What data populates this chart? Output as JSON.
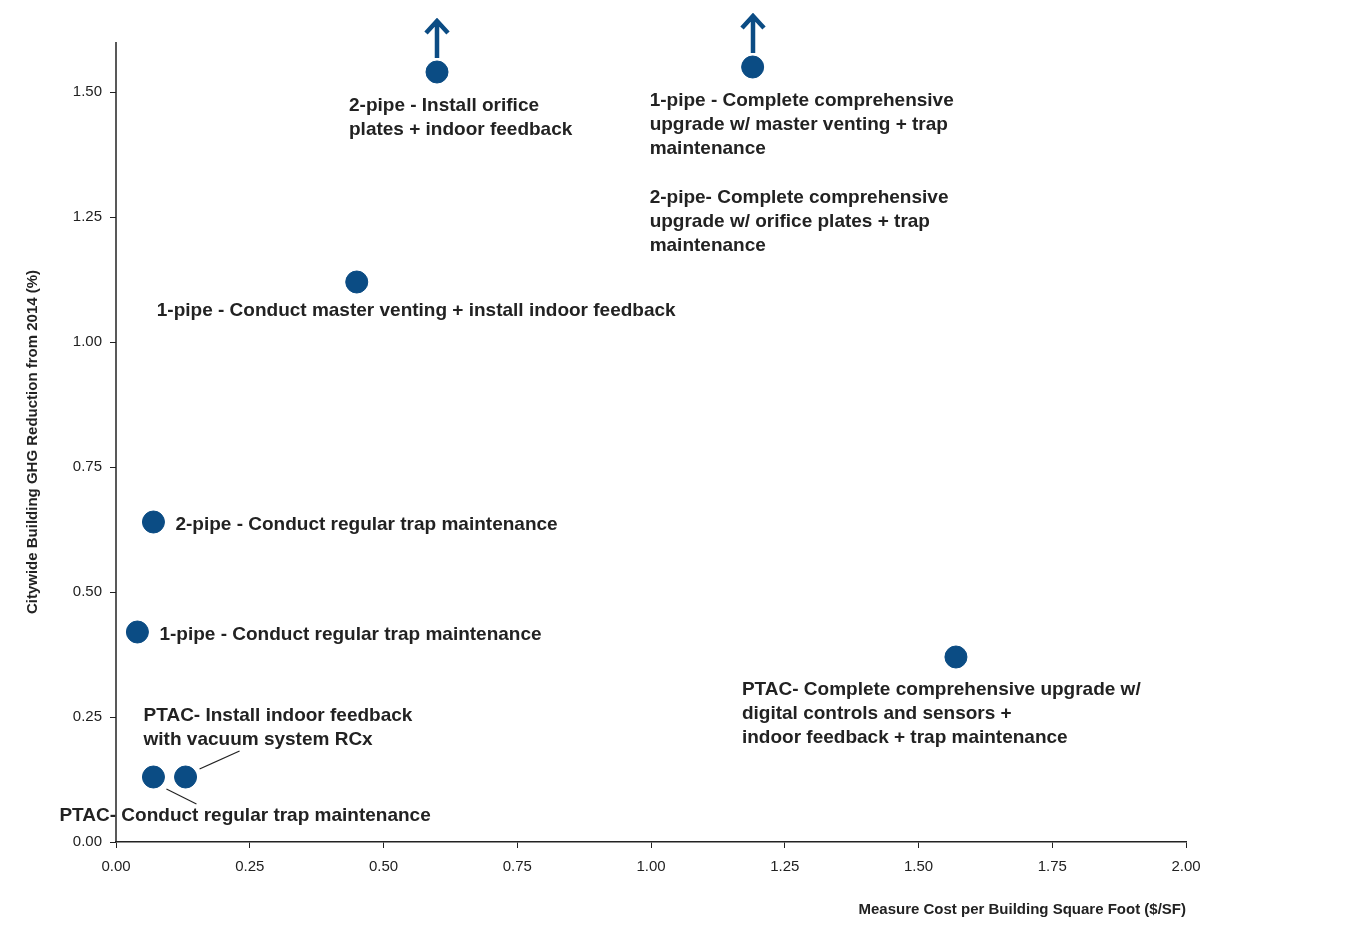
{
  "chart_data": {
    "type": "scatter",
    "xlabel": "Measure Cost per Building Square Foot ($/SF)",
    "ylabel": "Citywide Building GHG Reduction from 2014 (%)",
    "x": [
      0.6,
      1.19,
      0.45,
      0.07,
      0.04,
      1.57,
      0.07,
      0.13
    ],
    "values": [
      1.54,
      1.55,
      1.12,
      0.64,
      0.42,
      0.37,
      0.13,
      0.13
    ],
    "color": "#0b4c84",
    "marker": "circle",
    "grid": false,
    "xlim": [
      0,
      2
    ],
    "ylim": [
      0,
      1.6
    ],
    "xticks": [
      {
        "value": 0,
        "label": "0.00"
      },
      {
        "value": 0.25,
        "label": "0.25"
      },
      {
        "value": 0.5,
        "label": "0.50"
      },
      {
        "value": 0.75,
        "label": "0.75"
      },
      {
        "value": 1,
        "label": "1.00"
      },
      {
        "value": 1.25,
        "label": "1.25"
      },
      {
        "value": 1.5,
        "label": "1.50"
      },
      {
        "value": 1.75,
        "label": "1.75"
      },
      {
        "value": 2,
        "label": "2.00"
      }
    ],
    "yticks": [
      {
        "value": 0,
        "label": "0.00"
      },
      {
        "value": 0.25,
        "label": "0.25"
      },
      {
        "value": 0.5,
        "label": "0.50"
      },
      {
        "value": 0.75,
        "label": "0.75"
      },
      {
        "value": 1,
        "label": "1.00"
      },
      {
        "value": 1.25,
        "label": "1.25"
      },
      {
        "value": 1.5,
        "label": "1.50"
      }
    ],
    "annotations": [
      {
        "text": "2-pipe - Install orifice plates + indoor feedback",
        "x": 0.6,
        "y": 1.54
      },
      {
        "text": "1-pipe - Complete comprehensive upgrade w/ master venting + trap maintenance",
        "x": 1.19,
        "y": 1.55
      },
      "2-pipe- Complete comprehensive upgrade w/ orifice plates + trap maintenance",
      {
        "text": "1-pipe - Conduct master venting + install indoor feedback",
        "x": 0.45,
        "y": 1.12
      },
      {
        "text": "2-pipe - Conduct regular trap maintenance",
        "x": 0.07,
        "y": 0.64
      },
      {
        "text": "1-pipe - Conduct regular trap maintenance",
        "x": 0.04,
        "y": 0.42
      },
      {
        "text": "PTAC- Complete comprehensive upgrade w/ digital controls and sensors + indoor feedback + trap maintenance",
        "x": 1.57,
        "y": 0.37
      },
      {
        "text": "PTAC- Install indoor feedback with vacuum system RCx",
        "x": 0.13,
        "y": 0.13
      },
      {
        "text": "PTAC- Conduct regular trap maintenance",
        "x": 0.07,
        "y": 0.13
      }
    ]
  }
}
